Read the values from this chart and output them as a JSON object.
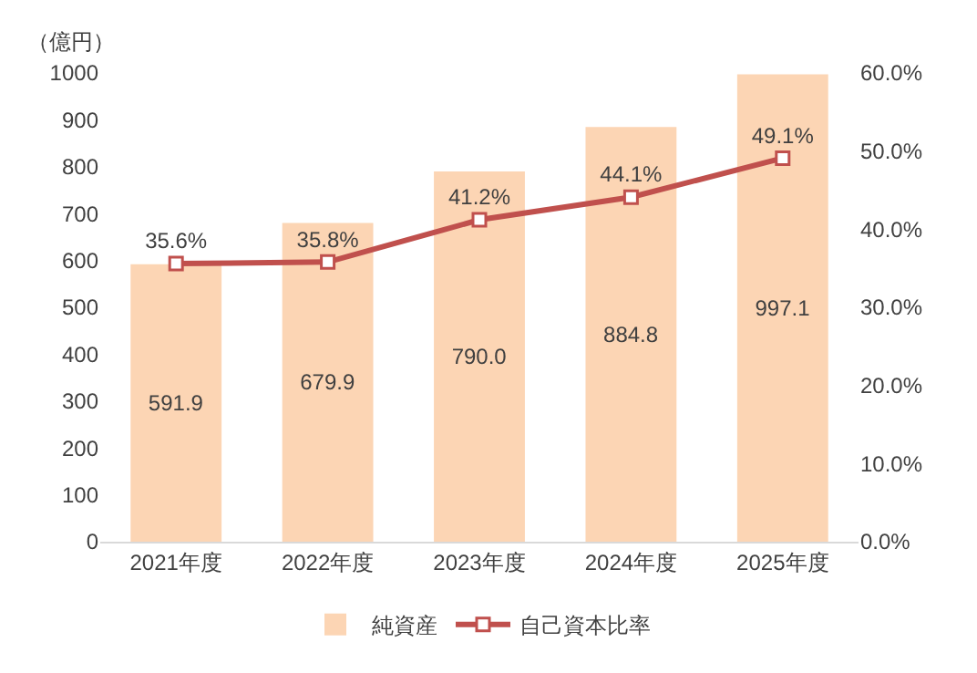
{
  "chart_data": {
    "type": "bar",
    "ylabel": "（億円）",
    "categories": [
      "2021年度",
      "2022年度",
      "2023年度",
      "2024年度",
      "2025年度"
    ],
    "series": [
      {
        "name": "純資産",
        "color": "#fcd5b4",
        "values": [
          591.9,
          679.9,
          790.0,
          884.8,
          997.1
        ],
        "value_labels": [
          "591.9",
          "679.9",
          "790.0",
          "884.8",
          "997.1"
        ]
      },
      {
        "name": "自己資本比率",
        "type": "line",
        "axis": "y2",
        "color": "#c0504d",
        "marker": "square",
        "values": [
          35.6,
          35.8,
          41.2,
          44.1,
          49.1
        ],
        "value_labels": [
          "35.6%",
          "35.8%",
          "41.2%",
          "44.1%",
          "49.1%"
        ]
      }
    ],
    "ylim": [
      0,
      1000
    ],
    "yticks": [
      0,
      100,
      200,
      300,
      400,
      500,
      600,
      700,
      800,
      900,
      1000
    ],
    "y2lim": [
      0,
      60
    ],
    "y2ticks": [
      {
        "value": 0,
        "label": "0.0%"
      },
      {
        "value": 10,
        "label": "10.0%"
      },
      {
        "value": 20,
        "label": "20.0%"
      },
      {
        "value": 30,
        "label": "30.0%"
      },
      {
        "value": 40,
        "label": "40.0%"
      },
      {
        "value": 50,
        "label": "50.0%"
      },
      {
        "value": 60,
        "label": "60.0%"
      }
    ],
    "grid": false,
    "legend": "bottom"
  }
}
